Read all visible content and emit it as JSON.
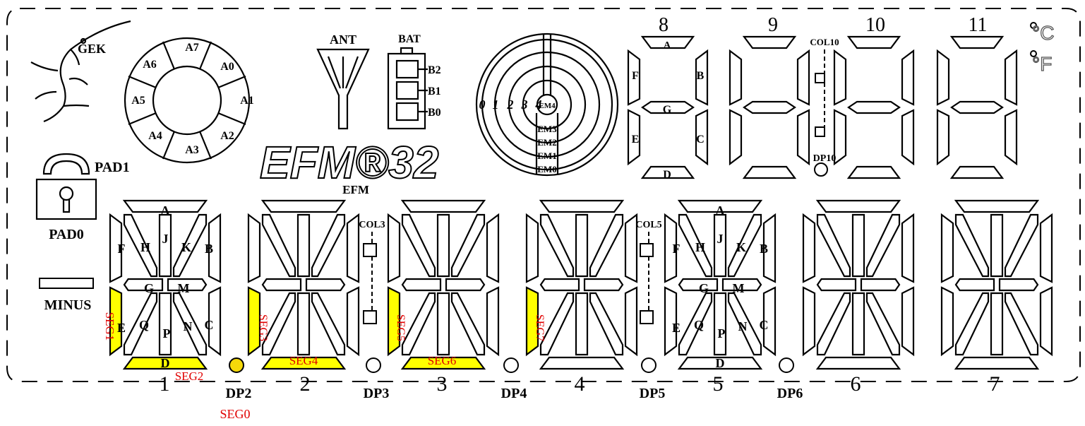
{
  "top": {
    "gecko_label": "GEK",
    "ring_labels": [
      "A0",
      "A1",
      "A2",
      "A3",
      "A4",
      "A5",
      "A6",
      "A7"
    ],
    "antenna_label": "ANT",
    "battery_label": "BAT",
    "battery_levels": [
      "B2",
      "B1",
      "B0"
    ],
    "brand_logo": "EFM®32",
    "brand_label": "EFM",
    "ring_digits": [
      "0",
      "1",
      "2",
      "3",
      "4"
    ],
    "em_labels": [
      "EM4",
      "EM3",
      "EM2",
      "EM1",
      "EM0"
    ],
    "numeric_digits": [
      "8",
      "9",
      "10",
      "11"
    ],
    "digit8_segments": [
      "A",
      "B",
      "C",
      "D",
      "E",
      "F",
      "G"
    ],
    "colon_label": "COL10",
    "dp_label": "DP10",
    "degree_c": "°C",
    "degree_f": "°F"
  },
  "left": {
    "pad1": "PAD1",
    "pad0": "PAD0",
    "minus": "MINUS"
  },
  "alpha": {
    "digit_numbers": [
      "1",
      "2",
      "3",
      "4",
      "5",
      "6",
      "7"
    ],
    "segment_letters": [
      "A",
      "B",
      "C",
      "D",
      "E",
      "F",
      "G",
      "H",
      "J",
      "K",
      "M",
      "N",
      "P",
      "Q"
    ],
    "dp_labels": [
      "DP2",
      "DP3",
      "DP4",
      "DP5",
      "DP6"
    ],
    "colon_labels": [
      "COL3",
      "COL5"
    ]
  },
  "annotations": {
    "seg0": "SEG0",
    "seg1": "SEG1",
    "seg2": "SEG2",
    "seg3": "SEG3",
    "seg4": "SEG4",
    "seg5": "SEG5",
    "seg6": "SEG6",
    "seg7": "SEG7",
    "highlight_color": "#ffff00",
    "annotation_color": "#e00000"
  }
}
